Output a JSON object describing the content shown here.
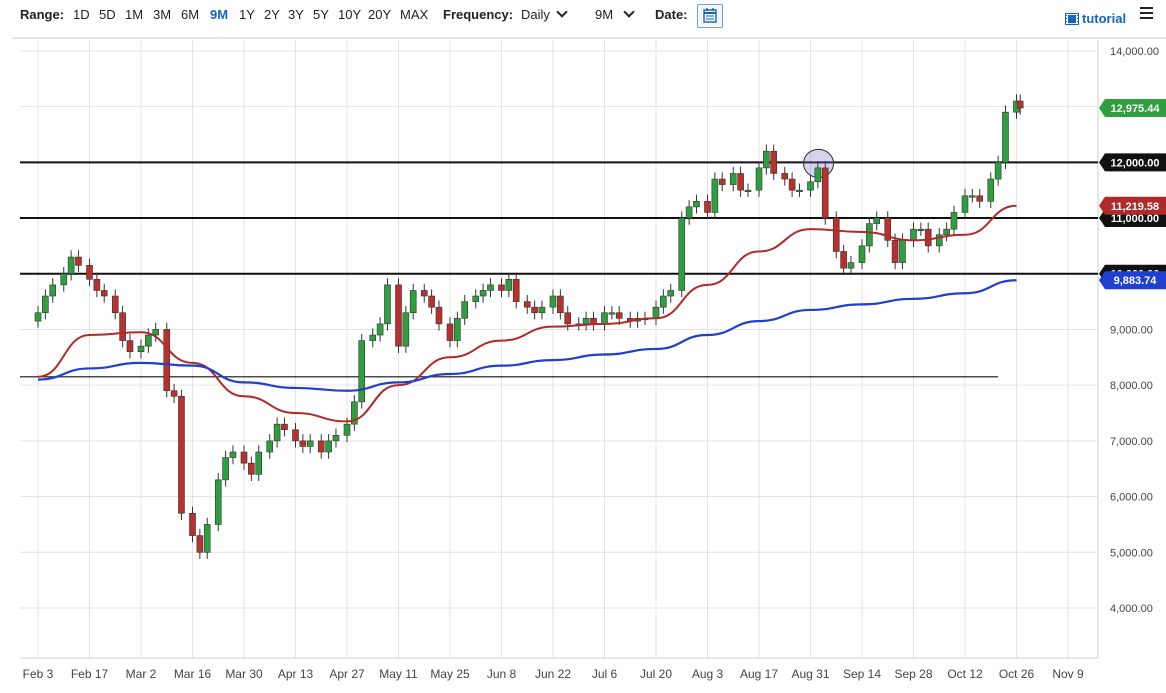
{
  "toolbar": {
    "range_label": "Range:",
    "ranges": [
      "1D",
      "5D",
      "1M",
      "3M",
      "6M",
      "9M",
      "1Y",
      "2Y",
      "3Y",
      "5Y",
      "10Y",
      "20Y",
      "MAX"
    ],
    "active_range": "9M",
    "frequency_label": "Frequency:",
    "frequency_value": "Daily",
    "period_value": "9M",
    "date_label": "Date:",
    "tutorial_label": "tutorial"
  },
  "colors": {
    "up_candle": "#2e9e3e",
    "down_candle": "#b8312f",
    "ma_short": "#b02a2a",
    "ma_long": "#1f3fcf",
    "price_badge": "#2e9e3e",
    "ma_short_badge": "#b02a2a",
    "ma_long_badge": "#1f3fcf",
    "level_badge": "#111111",
    "accent": "#1565c0"
  },
  "chart_data": {
    "type": "candlestick",
    "ylim": [
      3400,
      14300
    ],
    "y_ticks": [
      "14,000.00",
      "13,000.00",
      "12,000.00",
      "11,000.00",
      "10,000.00",
      "9,000.00",
      "8,000.00",
      "7,000.00",
      "6,000.00",
      "5,000.00",
      "4,000.00"
    ],
    "x_ticks": [
      "Feb 3",
      "Feb 17",
      "Mar 2",
      "Mar 16",
      "Mar 30",
      "Apr 13",
      "Apr 27",
      "May 11",
      "May 25",
      "Jun 8",
      "Jun 22",
      "Jul 6",
      "Jul 20",
      "Aug 3",
      "Aug 17",
      "Aug 31",
      "Sep 14",
      "Sep 28",
      "Oct 12",
      "Oct 26",
      "Nov 9"
    ],
    "horizontal_levels": [
      12000,
      11000,
      10000,
      8150
    ],
    "price_labels": {
      "last_price": "12,975.44",
      "level_12000": "12,000.00",
      "ma_short": "11,219.58",
      "level_11000": "11,000.00",
      "level_10000": "10,000.00",
      "ma_long": "9,883.74"
    },
    "close_path": [
      {
        "date": "Feb 3",
        "close": 9300
      },
      {
        "date": "Feb 5",
        "close": 9600
      },
      {
        "date": "Feb 7",
        "close": 9800
      },
      {
        "date": "Feb 10",
        "close": 10000
      },
      {
        "date": "Feb 12",
        "close": 10300
      },
      {
        "date": "Feb 14",
        "close": 10150
      },
      {
        "date": "Feb 17",
        "close": 9900
      },
      {
        "date": "Feb 19",
        "close": 9700
      },
      {
        "date": "Feb 21",
        "close": 9600
      },
      {
        "date": "Feb 24",
        "close": 9300
      },
      {
        "date": "Feb 26",
        "close": 8800
      },
      {
        "date": "Feb 28",
        "close": 8600
      },
      {
        "date": "Mar 2",
        "close": 8700
      },
      {
        "date": "Mar 4",
        "close": 8900
      },
      {
        "date": "Mar 6",
        "close": 9000
      },
      {
        "date": "Mar 9",
        "close": 7900
      },
      {
        "date": "Mar 11",
        "close": 7800
      },
      {
        "date": "Mar 13",
        "close": 5700
      },
      {
        "date": "Mar 16",
        "close": 5300
      },
      {
        "date": "Mar 18",
        "close": 5000
      },
      {
        "date": "Mar 20",
        "close": 5500
      },
      {
        "date": "Mar 23",
        "close": 6300
      },
      {
        "date": "Mar 25",
        "close": 6700
      },
      {
        "date": "Mar 27",
        "close": 6800
      },
      {
        "date": "Mar 30",
        "close": 6600
      },
      {
        "date": "Apr 1",
        "close": 6400
      },
      {
        "date": "Apr 3",
        "close": 6800
      },
      {
        "date": "Apr 6",
        "close": 7000
      },
      {
        "date": "Apr 8",
        "close": 7300
      },
      {
        "date": "Apr 10",
        "close": 7200
      },
      {
        "date": "Apr 13",
        "close": 7000
      },
      {
        "date": "Apr 15",
        "close": 6900
      },
      {
        "date": "Apr 17",
        "close": 7000
      },
      {
        "date": "Apr 20",
        "close": 6800
      },
      {
        "date": "Apr 22",
        "close": 7000
      },
      {
        "date": "Apr 24",
        "close": 7100
      },
      {
        "date": "Apr 27",
        "close": 7300
      },
      {
        "date": "Apr 29",
        "close": 7700
      },
      {
        "date": "May 1",
        "close": 8800
      },
      {
        "date": "May 4",
        "close": 8900
      },
      {
        "date": "May 6",
        "close": 9100
      },
      {
        "date": "May 8",
        "close": 9800
      },
      {
        "date": "May 11",
        "close": 8700
      },
      {
        "date": "May 13",
        "close": 9300
      },
      {
        "date": "May 15",
        "close": 9700
      },
      {
        "date": "May 18",
        "close": 9600
      },
      {
        "date": "May 20",
        "close": 9400
      },
      {
        "date": "May 22",
        "close": 9100
      },
      {
        "date": "May 25",
        "close": 8800
      },
      {
        "date": "May 27",
        "close": 9200
      },
      {
        "date": "May 29",
        "close": 9500
      },
      {
        "date": "Jun 1",
        "close": 9600
      },
      {
        "date": "Jun 3",
        "close": 9700
      },
      {
        "date": "Jun 5",
        "close": 9800
      },
      {
        "date": "Jun 8",
        "close": 9700
      },
      {
        "date": "Jun 10",
        "close": 9900
      },
      {
        "date": "Jun 12",
        "close": 9500
      },
      {
        "date": "Jun 15",
        "close": 9400
      },
      {
        "date": "Jun 17",
        "close": 9300
      },
      {
        "date": "Jun 19",
        "close": 9400
      },
      {
        "date": "Jun 22",
        "close": 9600
      },
      {
        "date": "Jun 24",
        "close": 9300
      },
      {
        "date": "Jun 26",
        "close": 9100
      },
      {
        "date": "Jun 29",
        "close": 9100
      },
      {
        "date": "Jul 1",
        "close": 9200
      },
      {
        "date": "Jul 3",
        "close": 9100
      },
      {
        "date": "Jul 6",
        "close": 9300
      },
      {
        "date": "Jul 8",
        "close": 9300
      },
      {
        "date": "Jul 10",
        "close": 9200
      },
      {
        "date": "Jul 13",
        "close": 9150
      },
      {
        "date": "Jul 15",
        "close": 9200
      },
      {
        "date": "Jul 17",
        "close": 9200
      },
      {
        "date": "Jul 20",
        "close": 9400
      },
      {
        "date": "Jul 22",
        "close": 9600
      },
      {
        "date": "Jul 24",
        "close": 9700
      },
      {
        "date": "Jul 27",
        "close": 11000
      },
      {
        "date": "Jul 29",
        "close": 11200
      },
      {
        "date": "Jul 31",
        "close": 11300
      },
      {
        "date": "Aug 3",
        "close": 11100
      },
      {
        "date": "Aug 5",
        "close": 11700
      },
      {
        "date": "Aug 7",
        "close": 11600
      },
      {
        "date": "Aug 10",
        "close": 11800
      },
      {
        "date": "Aug 12",
        "close": 11500
      },
      {
        "date": "Aug 14",
        "close": 11500
      },
      {
        "date": "Aug 17",
        "close": 11900
      },
      {
        "date": "Aug 19",
        "close": 12200
      },
      {
        "date": "Aug 21",
        "close": 11800
      },
      {
        "date": "Aug 24",
        "close": 11700
      },
      {
        "date": "Aug 26",
        "close": 11500
      },
      {
        "date": "Aug 28",
        "close": 11500
      },
      {
        "date": "Aug 31",
        "close": 11650
      },
      {
        "date": "Sep 2",
        "close": 11900
      },
      {
        "date": "Sep 4",
        "close": 11000
      },
      {
        "date": "Sep 7",
        "close": 10400
      },
      {
        "date": "Sep 9",
        "close": 10100
      },
      {
        "date": "Sep 11",
        "close": 10200
      },
      {
        "date": "Sep 14",
        "close": 10500
      },
      {
        "date": "Sep 16",
        "close": 10900
      },
      {
        "date": "Sep 18",
        "close": 11000
      },
      {
        "date": "Sep 21",
        "close": 10600
      },
      {
        "date": "Sep 23",
        "close": 10200
      },
      {
        "date": "Sep 25",
        "close": 10600
      },
      {
        "date": "Sep 28",
        "close": 10800
      },
      {
        "date": "Sep 30",
        "close": 10800
      },
      {
        "date": "Oct 2",
        "close": 10500
      },
      {
        "date": "Oct 5",
        "close": 10700
      },
      {
        "date": "Oct 7",
        "close": 10800
      },
      {
        "date": "Oct 9",
        "close": 11100
      },
      {
        "date": "Oct 12",
        "close": 11400
      },
      {
        "date": "Oct 14",
        "close": 11400
      },
      {
        "date": "Oct 16",
        "close": 11300
      },
      {
        "date": "Oct 19",
        "close": 11700
      },
      {
        "date": "Oct 21",
        "close": 12000
      },
      {
        "date": "Oct 23",
        "close": 12900
      },
      {
        "date": "Oct 26",
        "close": 13100
      },
      {
        "date": "Oct 27",
        "close": 12975
      }
    ],
    "ma_short_path": [
      {
        "date": "Feb 3",
        "value": 8150
      },
      {
        "date": "Feb 17",
        "value": 8900
      },
      {
        "date": "Mar 2",
        "value": 8950
      },
      {
        "date": "Mar 16",
        "value": 8400
      },
      {
        "date": "Mar 30",
        "value": 7800
      },
      {
        "date": "Apr 13",
        "value": 7500
      },
      {
        "date": "Apr 27",
        "value": 7350
      },
      {
        "date": "May 11",
        "value": 8000
      },
      {
        "date": "May 25",
        "value": 8500
      },
      {
        "date": "Jun 8",
        "value": 8800
      },
      {
        "date": "Jun 22",
        "value": 9050
      },
      {
        "date": "Jul 6",
        "value": 9100
      },
      {
        "date": "Jul 20",
        "value": 9200
      },
      {
        "date": "Aug 3",
        "value": 9800
      },
      {
        "date": "Aug 17",
        "value": 10400
      },
      {
        "date": "Aug 31",
        "value": 10800
      },
      {
        "date": "Sep 14",
        "value": 10750
      },
      {
        "date": "Sep 28",
        "value": 10600
      },
      {
        "date": "Oct 12",
        "value": 10700
      },
      {
        "date": "Oct 26",
        "value": 11219.58
      }
    ],
    "ma_long_path": [
      {
        "date": "Feb 3",
        "value": 8100
      },
      {
        "date": "Feb 17",
        "value": 8300
      },
      {
        "date": "Mar 2",
        "value": 8400
      },
      {
        "date": "Mar 16",
        "value": 8350
      },
      {
        "date": "Mar 30",
        "value": 8050
      },
      {
        "date": "Apr 13",
        "value": 7950
      },
      {
        "date": "Apr 27",
        "value": 7900
      },
      {
        "date": "May 11",
        "value": 8050
      },
      {
        "date": "May 25",
        "value": 8200
      },
      {
        "date": "Jun 8",
        "value": 8350
      },
      {
        "date": "Jun 22",
        "value": 8450
      },
      {
        "date": "Jul 6",
        "value": 8550
      },
      {
        "date": "Jul 20",
        "value": 8650
      },
      {
        "date": "Aug 3",
        "value": 8900
      },
      {
        "date": "Aug 17",
        "value": 9150
      },
      {
        "date": "Aug 31",
        "value": 9350
      },
      {
        "date": "Sep 14",
        "value": 9450
      },
      {
        "date": "Sep 28",
        "value": 9550
      },
      {
        "date": "Oct 12",
        "value": 9650
      },
      {
        "date": "Oct 26",
        "value": 9883.74
      }
    ]
  }
}
